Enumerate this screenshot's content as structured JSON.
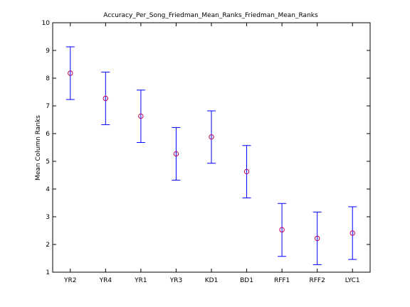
{
  "chart_data": {
    "type": "scatter",
    "title": "Accuracy_Per_Song_Friedman_Mean_Ranks_Friedman_Mean_Ranks",
    "xlabel": "",
    "ylabel": "Mean Column Ranks",
    "ylim": [
      1,
      10
    ],
    "yticks": [
      1,
      2,
      3,
      4,
      5,
      6,
      7,
      8,
      9,
      10
    ],
    "categories": [
      "YR2",
      "YR4",
      "YR1",
      "YR3",
      "KD1",
      "BD1",
      "RFF1",
      "RFF2",
      "LYC1"
    ],
    "values": [
      8.18,
      7.27,
      6.63,
      5.27,
      5.88,
      4.63,
      2.53,
      2.22,
      2.41
    ],
    "lower": [
      7.23,
      6.32,
      5.68,
      4.32,
      4.93,
      3.68,
      1.57,
      1.27,
      1.46
    ],
    "upper": [
      9.13,
      8.22,
      7.57,
      6.22,
      6.82,
      5.57,
      3.48,
      3.17,
      3.36
    ],
    "grid": false,
    "colors": {
      "errorbar": "#0000ff",
      "marker": "#c00060"
    }
  }
}
